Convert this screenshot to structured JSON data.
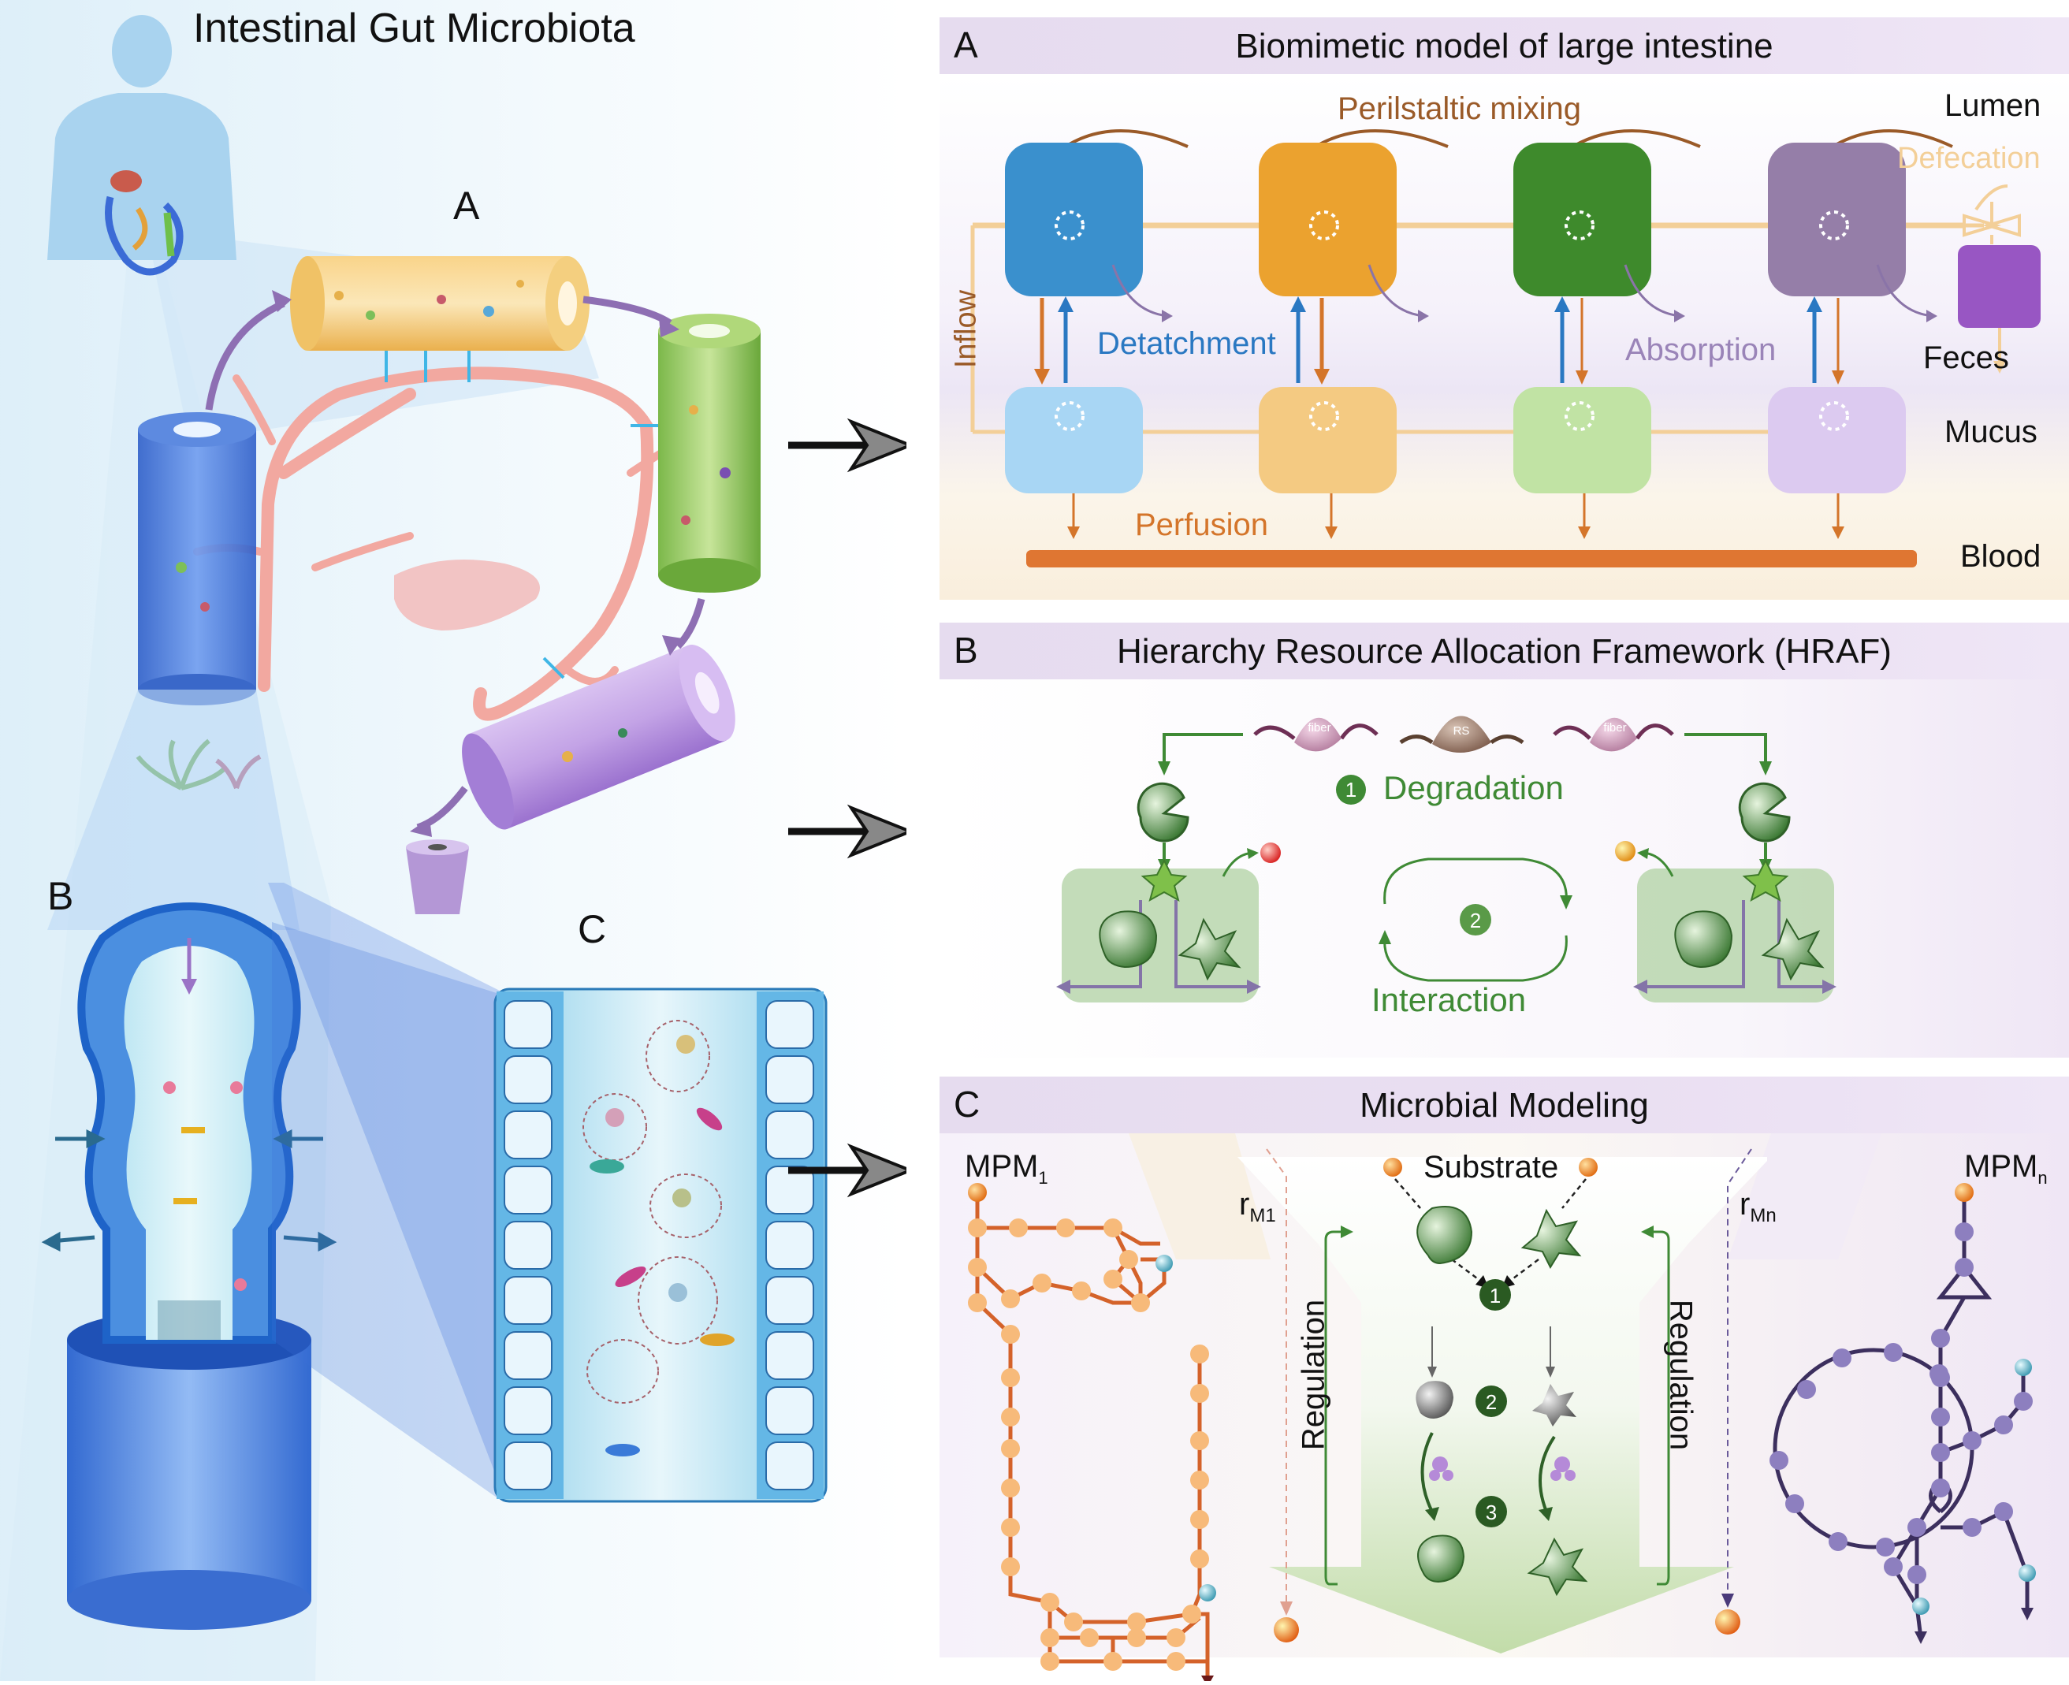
{
  "left": {
    "title": "Intestinal Gut Microbiota",
    "labels": {
      "a": "A",
      "b": "B",
      "c": "C"
    }
  },
  "panel_a": {
    "letter": "A",
    "title": "Biomimetic model of large intestine",
    "labels": {
      "perilstaltic": "Perilstaltic mixing",
      "lumen": "Lumen",
      "defecation": "Defecation",
      "detatchment": "Detatchment",
      "absorption": "Absorption",
      "feces": "Feces",
      "inflow": "Inflow",
      "mucus": "Mucus",
      "perfusion": "Perfusion",
      "blood": "Blood"
    },
    "colors": {
      "lumen": [
        "#3a90cd",
        "#eba22f",
        "#3e8a2c",
        "#957ea8"
      ],
      "mucus": [
        "#a8d6f4",
        "#f4ca82",
        "#c1e3a4",
        "#dccaf0"
      ],
      "feces": "#9856c3",
      "blood": "#df7632"
    }
  },
  "panel_b": {
    "letter": "B",
    "title": "Hierarchy Resource Allocation Framework (HRAF)",
    "labels": {
      "fiber": "fiber",
      "rs": "RS",
      "step1": "1",
      "degradation": "Degradation",
      "step2": "2",
      "interaction": "Interaction"
    }
  },
  "panel_c": {
    "letter": "C",
    "title": "Microbial Modeling",
    "labels": {
      "mpm1": "MPM",
      "mpm1_sub": "1",
      "mpmn": "MPM",
      "mpmn_sub": "n",
      "substrate": "Substrate",
      "rm1": "r",
      "rm1_sub": "M1",
      "rmn": "r",
      "rmn_sub": "Mn",
      "regulation_left": "Regulation",
      "regulation_right": "Regulation",
      "step1": "1",
      "step2": "2",
      "step3": "3"
    }
  }
}
